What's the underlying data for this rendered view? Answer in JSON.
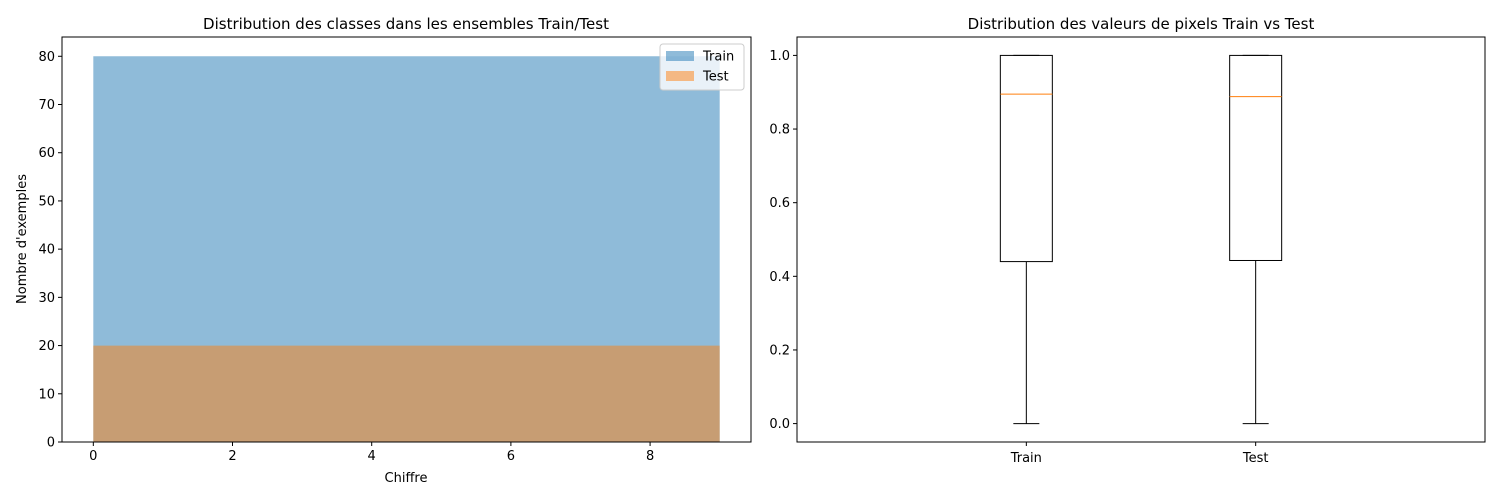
{
  "chart_data": [
    {
      "type": "area",
      "title": "Distribution des classes dans les ensembles Train/Test",
      "xlabel": "Chiffre",
      "ylabel": "Nombre d'exemples",
      "x": [
        0,
        1,
        2,
        3,
        4,
        5,
        6,
        7,
        8,
        9
      ],
      "series": [
        {
          "name": "Train",
          "values": [
            80,
            80,
            80,
            80,
            80,
            80,
            80,
            80,
            80,
            80
          ],
          "color": "#1f77b4"
        },
        {
          "name": "Test",
          "values": [
            20,
            20,
            20,
            20,
            20,
            20,
            20,
            20,
            20,
            20
          ],
          "color": "#ff7f0e"
        }
      ],
      "xlim": [
        -0.45,
        9.45
      ],
      "ylim": [
        0,
        84
      ],
      "xticks": [
        0,
        2,
        4,
        6,
        8
      ],
      "yticks": [
        0,
        10,
        20,
        30,
        40,
        50,
        60,
        70,
        80
      ],
      "legend_position": "top-right",
      "opacity": 0.5,
      "grid": false
    },
    {
      "type": "box",
      "title": "Distribution des valeurs de pixels Train vs Test",
      "categories": [
        "Train",
        "Test"
      ],
      "boxes": [
        {
          "label": "Train",
          "min": 0.0,
          "q1": 0.44,
          "median": 0.895,
          "q3": 1.0,
          "max": 1.0
        },
        {
          "label": "Test",
          "min": 0.0,
          "q1": 0.443,
          "median": 0.888,
          "q3": 1.0,
          "max": 1.0
        }
      ],
      "ylim": [
        -0.05,
        1.05
      ],
      "yticks": [
        "0.0",
        "0.2",
        "0.4",
        "0.6",
        "0.8",
        "1.0"
      ],
      "median_color": "#ff7f0e",
      "grid": false
    }
  ]
}
